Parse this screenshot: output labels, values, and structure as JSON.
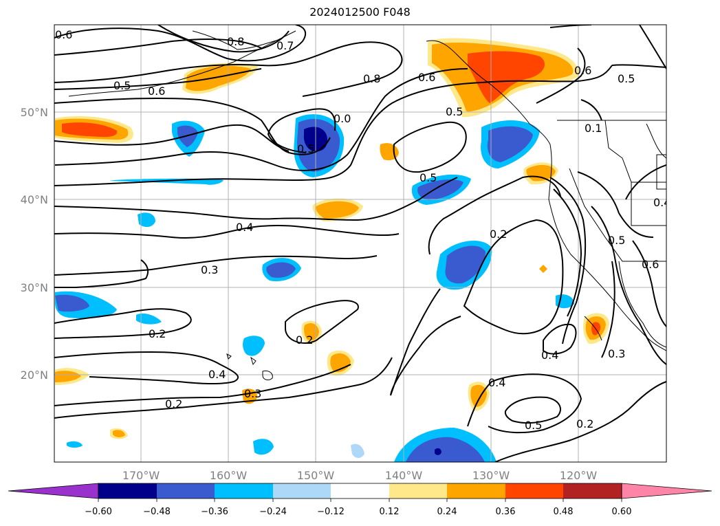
{
  "title": "2024012500 F048",
  "map": {
    "lon_ticks": [
      "170°W",
      "160°W",
      "150°W",
      "140°W",
      "130°W",
      "120°W"
    ],
    "lat_ticks": [
      "50°N",
      "40°N",
      "30°N",
      "20°N"
    ]
  },
  "contour_labels": [
    "0.6",
    "0.8",
    "0.7",
    "0.5",
    "0.6",
    "0.8",
    "0.6",
    "0.5",
    "0.5",
    "0.6",
    "0.5",
    "0.1",
    "0.4",
    "0.5",
    "0.4",
    "0.2",
    "0.3",
    "0.5",
    "0.6",
    "0.2",
    "0.2",
    "0.4",
    "0.3",
    "0.2",
    "0.4",
    "0.3",
    "0.4",
    "0.5",
    "0.2",
    "0.4",
    "0.0",
    "0.5"
  ],
  "colorbar": {
    "tick_labels": [
      "−0.60",
      "−0.48",
      "−0.36",
      "−0.24",
      "−0.12",
      "0.12",
      "0.24",
      "0.36",
      "0.48",
      "0.60"
    ],
    "colors": [
      "#9932cc",
      "#00008b",
      "#3a5bd0",
      "#00bfff",
      "#add8f7",
      "#ffffff",
      "#ffe88a",
      "#ffa500",
      "#ff4500",
      "#b22222",
      "#ff85a8"
    ]
  }
}
